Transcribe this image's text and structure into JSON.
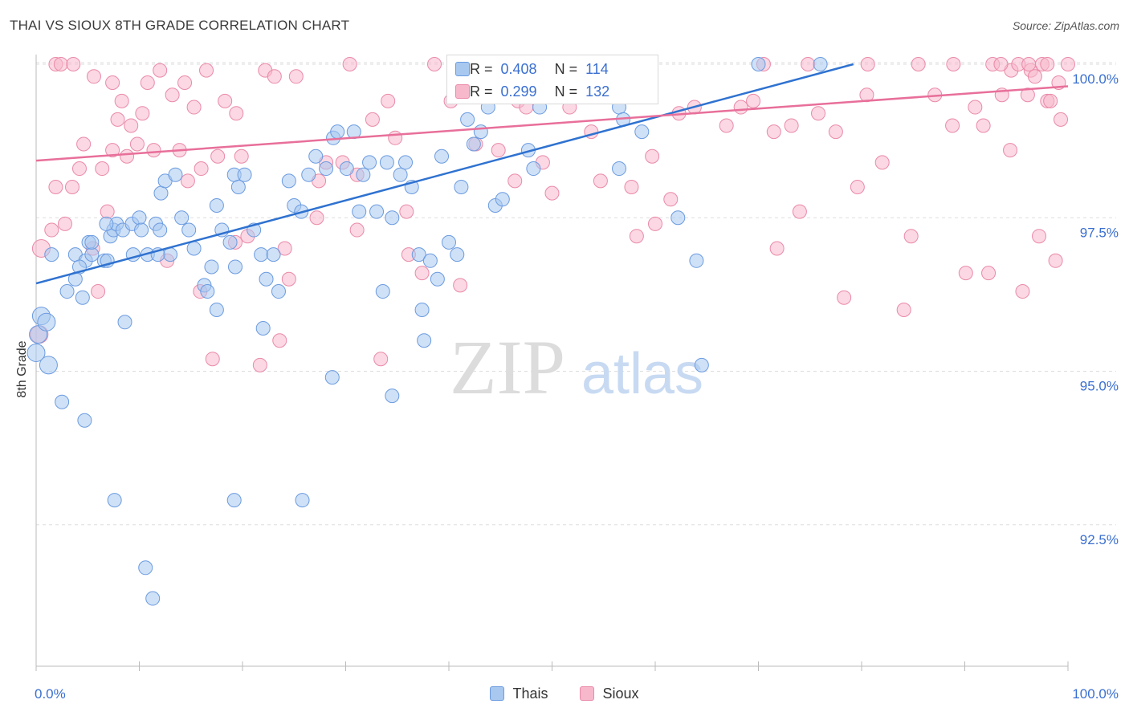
{
  "header": {
    "title": "THAI VS SIOUX 8TH GRADE CORRELATION CHART",
    "source": "Source: ZipAtlas.com"
  },
  "watermark": {
    "zip": "ZIP",
    "atlas": "atlas"
  },
  "legend_box": {
    "rows": [
      {
        "r_label": "R =",
        "r_value": "0.408",
        "n_label": "N =",
        "n_value": "114"
      },
      {
        "r_label": "R =",
        "r_value": "0.299",
        "n_label": "N =",
        "n_value": "132"
      }
    ]
  },
  "colors": {
    "thais_fill": "#a8c8f0",
    "thais_stroke": "#6b9be0",
    "thais_line": "#2f72d0",
    "sioux_fill": "#f7b8cc",
    "sioux_stroke": "#ea8aa8",
    "sioux_line": "#e86f9a",
    "axis_label_blue": "#3a6fd0",
    "grid": "#dddddd"
  },
  "chart_data": {
    "type": "scatter",
    "title": "THAI VS SIOUX 8TH GRADE CORRELATION CHART",
    "xlabel": "",
    "ylabel": "8th Grade",
    "xlim": [
      0,
      100
    ],
    "ylim": [
      90.3,
      100.3
    ],
    "x_tick_labels": [
      "0.0%",
      "100.0%"
    ],
    "y_ticks": [
      92.5,
      95.0,
      97.5,
      100.0
    ],
    "y_tick_labels": [
      "92.5%",
      "95.0%",
      "97.5%",
      "100.0%"
    ],
    "grid": "horizontal dashed",
    "legend_position": "bottom-center",
    "series": [
      {
        "name": "Thais",
        "r": 0.408,
        "n": 114,
        "trend": {
          "x": [
            0,
            79.2
          ],
          "y": [
            96.43,
            100.0
          ]
        },
        "points": [
          [
            0,
            95.3
          ],
          [
            0.2,
            95.6
          ],
          [
            0.5,
            95.9
          ],
          [
            1,
            95.8
          ],
          [
            1.2,
            95.1
          ],
          [
            2.5,
            94.5
          ],
          [
            4.7,
            94.2
          ],
          [
            7.6,
            92.9
          ],
          [
            19.2,
            92.9
          ],
          [
            10.6,
            91.8
          ],
          [
            11.3,
            91.3
          ],
          [
            25.8,
            92.9
          ],
          [
            1.5,
            96.9
          ],
          [
            3,
            96.3
          ],
          [
            3.8,
            96.9
          ],
          [
            4.8,
            96.8
          ],
          [
            4.2,
            96.7
          ],
          [
            4.5,
            96.2
          ],
          [
            5.1,
            97.1
          ],
          [
            5.4,
            96.9
          ],
          [
            6.6,
            96.8
          ],
          [
            6.9,
            96.8
          ],
          [
            7.2,
            97.2
          ],
          [
            7.5,
            97.3
          ],
          [
            7.8,
            97.4
          ],
          [
            8.4,
            97.3
          ],
          [
            9.3,
            97.4
          ],
          [
            10,
            97.5
          ],
          [
            10.2,
            97.3
          ],
          [
            11.6,
            97.4
          ],
          [
            12.1,
            97.9
          ],
          [
            12.5,
            98.1
          ],
          [
            13.5,
            98.2
          ],
          [
            14.1,
            97.5
          ],
          [
            14.8,
            97.3
          ],
          [
            15.3,
            97.0
          ],
          [
            16.3,
            96.4
          ],
          [
            17,
            96.7
          ],
          [
            17.5,
            97.7
          ],
          [
            18,
            97.3
          ],
          [
            18.8,
            97.1
          ],
          [
            19.2,
            98.2
          ],
          [
            19.6,
            98.0
          ],
          [
            20.2,
            98.2
          ],
          [
            21.1,
            97.3
          ],
          [
            21.8,
            96.9
          ],
          [
            22.3,
            96.5
          ],
          [
            23,
            96.9
          ],
          [
            23.5,
            96.3
          ],
          [
            24.5,
            98.1
          ],
          [
            25,
            97.7
          ],
          [
            25.7,
            97.6
          ],
          [
            26.4,
            98.2
          ],
          [
            27.1,
            98.5
          ],
          [
            28.1,
            98.3
          ],
          [
            28.8,
            98.8
          ],
          [
            29.2,
            98.9
          ],
          [
            30.1,
            98.3
          ],
          [
            30.8,
            98.9
          ],
          [
            31.3,
            97.6
          ],
          [
            31.7,
            98.2
          ],
          [
            32.3,
            98.4
          ],
          [
            33,
            97.6
          ],
          [
            33.6,
            96.3
          ],
          [
            34,
            98.4
          ],
          [
            34.5,
            97.5
          ],
          [
            35.3,
            98.2
          ],
          [
            35.8,
            98.4
          ],
          [
            36.4,
            98.0
          ],
          [
            37.1,
            96.9
          ],
          [
            37.6,
            95.5
          ],
          [
            38.2,
            96.8
          ],
          [
            38.9,
            96.5
          ],
          [
            40,
            97.1
          ],
          [
            40.8,
            96.9
          ],
          [
            41.8,
            99.1
          ],
          [
            42.4,
            98.7
          ],
          [
            43.1,
            98.9
          ],
          [
            43.8,
            99.3
          ],
          [
            44.5,
            97.7
          ],
          [
            45.2,
            97.8
          ],
          [
            46.3,
            99.5
          ],
          [
            47.7,
            98.6
          ],
          [
            48.2,
            98.3
          ],
          [
            49.3,
            100.0
          ],
          [
            50.9,
            100.0
          ],
          [
            52.9,
            100.0
          ],
          [
            56.5,
            99.3
          ],
          [
            56.9,
            99.1
          ],
          [
            58.7,
            98.9
          ],
          [
            62.2,
            97.5
          ],
          [
            64,
            96.8
          ],
          [
            64.5,
            95.1
          ],
          [
            3.8,
            96.5
          ],
          [
            9.4,
            96.9
          ],
          [
            13,
            96.9
          ],
          [
            16.6,
            96.3
          ],
          [
            19.3,
            96.7
          ],
          [
            8.6,
            95.8
          ],
          [
            10.8,
            96.9
          ],
          [
            11.8,
            96.9
          ],
          [
            17.5,
            96.0
          ],
          [
            22,
            95.7
          ],
          [
            28.7,
            94.9
          ],
          [
            34.5,
            94.6
          ],
          [
            5.4,
            97.1
          ],
          [
            6.8,
            97.4
          ],
          [
            12,
            97.3
          ],
          [
            37.4,
            96.0
          ],
          [
            39.3,
            98.5
          ],
          [
            41.2,
            98.0
          ],
          [
            43,
            100.0
          ],
          [
            44.7,
            100.0
          ],
          [
            48.8,
            99.3
          ],
          [
            56.5,
            98.3
          ],
          [
            70,
            100.0
          ],
          [
            76,
            100.0
          ]
        ]
      },
      {
        "name": "Sioux",
        "r": 0.299,
        "n": 132,
        "trend": {
          "x": [
            0,
            100
          ],
          "y": [
            98.43,
            99.64
          ]
        },
        "points": [
          [
            0.3,
            95.6
          ],
          [
            0.5,
            97.0
          ],
          [
            1.5,
            97.3
          ],
          [
            1.9,
            98.0
          ],
          [
            2.8,
            97.4
          ],
          [
            3.5,
            98.0
          ],
          [
            4.2,
            98.3
          ],
          [
            4.6,
            98.7
          ],
          [
            5.5,
            97.0
          ],
          [
            6,
            96.3
          ],
          [
            6.4,
            98.3
          ],
          [
            6.9,
            97.6
          ],
          [
            7.4,
            98.6
          ],
          [
            7.9,
            99.1
          ],
          [
            8.3,
            99.4
          ],
          [
            8.8,
            98.5
          ],
          [
            9.2,
            99.0
          ],
          [
            9.8,
            98.7
          ],
          [
            10.3,
            99.2
          ],
          [
            10.8,
            99.7
          ],
          [
            11.4,
            98.6
          ],
          [
            12,
            99.9
          ],
          [
            12.7,
            96.8
          ],
          [
            13.2,
            99.5
          ],
          [
            13.9,
            98.6
          ],
          [
            14.4,
            99.7
          ],
          [
            14.7,
            98.1
          ],
          [
            15.3,
            99.3
          ],
          [
            16,
            98.3
          ],
          [
            16.5,
            99.9
          ],
          [
            17.1,
            95.2
          ],
          [
            17.6,
            98.5
          ],
          [
            18.3,
            99.4
          ],
          [
            19.4,
            99.2
          ],
          [
            19.9,
            98.5
          ],
          [
            20.5,
            97.2
          ],
          [
            21.7,
            95.1
          ],
          [
            22.2,
            99.9
          ],
          [
            23.1,
            99.8
          ],
          [
            23.6,
            95.5
          ],
          [
            24.1,
            97.0
          ],
          [
            25.2,
            99.8
          ],
          [
            27.4,
            98.1
          ],
          [
            28.1,
            98.4
          ],
          [
            29.7,
            98.4
          ],
          [
            30.4,
            100.0
          ],
          [
            31.1,
            98.2
          ],
          [
            32.6,
            99.1
          ],
          [
            33.4,
            95.2
          ],
          [
            34.1,
            99.4
          ],
          [
            34.8,
            98.8
          ],
          [
            36.1,
            96.9
          ],
          [
            37.4,
            96.6
          ],
          [
            38.6,
            100.0
          ],
          [
            40.2,
            99.4
          ],
          [
            41.1,
            100.0
          ],
          [
            42.6,
            98.7
          ],
          [
            44.8,
            98.6
          ],
          [
            46.7,
            99.4
          ],
          [
            47.5,
            99.3
          ],
          [
            49.1,
            98.4
          ],
          [
            51.7,
            99.3
          ],
          [
            53.8,
            98.9
          ],
          [
            57.7,
            98.0
          ],
          [
            58.2,
            97.2
          ],
          [
            59.7,
            98.5
          ],
          [
            62.3,
            99.2
          ],
          [
            63.8,
            99.3
          ],
          [
            66.9,
            99.0
          ],
          [
            69.5,
            99.4
          ],
          [
            71.5,
            98.9
          ],
          [
            73.2,
            99.0
          ],
          [
            75.8,
            99.2
          ],
          [
            77.5,
            98.9
          ],
          [
            79.6,
            98.0
          ],
          [
            80.5,
            99.5
          ],
          [
            82,
            98.4
          ],
          [
            84.8,
            97.2
          ],
          [
            87.1,
            99.5
          ],
          [
            88.8,
            99.0
          ],
          [
            92.3,
            96.6
          ],
          [
            94.4,
            98.6
          ],
          [
            96.4,
            99.9
          ],
          [
            98,
            99.4
          ],
          [
            99.1,
            99.7
          ],
          [
            1.9,
            100.0
          ],
          [
            2.4,
            100.0
          ],
          [
            3.6,
            100.0
          ],
          [
            5.6,
            99.8
          ],
          [
            7.4,
            99.7
          ],
          [
            15.9,
            96.3
          ],
          [
            19.3,
            97.1
          ],
          [
            24.5,
            96.5
          ],
          [
            27.2,
            97.5
          ],
          [
            31.1,
            97.3
          ],
          [
            35.9,
            97.6
          ],
          [
            41.1,
            96.4
          ],
          [
            46.4,
            98.1
          ],
          [
            50,
            97.9
          ],
          [
            54.7,
            98.1
          ],
          [
            60,
            97.4
          ],
          [
            61.5,
            97.8
          ],
          [
            68.3,
            99.3
          ],
          [
            71.8,
            97.0
          ],
          [
            74,
            97.6
          ],
          [
            78.3,
            96.2
          ],
          [
            84.1,
            96.0
          ],
          [
            90.1,
            96.6
          ],
          [
            95.6,
            96.3
          ],
          [
            97.2,
            97.2
          ],
          [
            98.8,
            96.8
          ],
          [
            91,
            99.3
          ],
          [
            91.8,
            99.0
          ],
          [
            92.7,
            100.0
          ],
          [
            93.6,
            99.5
          ],
          [
            94.5,
            99.9
          ],
          [
            95.2,
            100.0
          ],
          [
            96.1,
            99.5
          ],
          [
            96.8,
            99.8
          ],
          [
            97.5,
            100.0
          ],
          [
            98.3,
            99.4
          ],
          [
            99.3,
            99.1
          ],
          [
            100,
            100.0
          ],
          [
            70.5,
            100.0
          ],
          [
            74.8,
            100.0
          ],
          [
            80.6,
            100.0
          ],
          [
            85.5,
            100.0
          ],
          [
            88.9,
            100.0
          ],
          [
            93.5,
            100.0
          ],
          [
            96.2,
            100.0
          ],
          [
            98,
            100.0
          ]
        ]
      }
    ]
  }
}
